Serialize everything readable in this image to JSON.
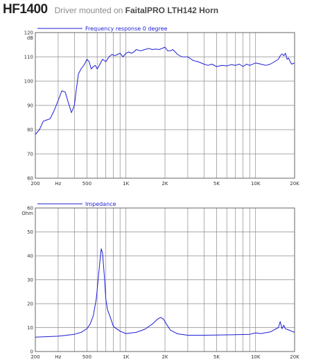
{
  "header": {
    "model": "HF1400",
    "subtitle_prefix": "Driver mounted on ",
    "subtitle_bold": "FaitalPRO LTH142 Horn"
  },
  "colors": {
    "curve": "#1c1cd6",
    "grid": "#8a8a8a",
    "text": "#333333"
  },
  "chart_data": [
    {
      "type": "line",
      "title": "",
      "legend": "Frequency response 0 degree",
      "legend_placement": "top-left",
      "xscale": "log",
      "xlim": [
        200,
        20000
      ],
      "ylim": [
        60,
        120
      ],
      "ylabel": "dB",
      "xticks": [
        {
          "v": 200,
          "t": "200"
        },
        {
          "v": 300,
          "t": "Hz"
        },
        {
          "v": 500,
          "t": "500"
        },
        {
          "v": 1000,
          "t": "1K"
        },
        {
          "v": 2000,
          "t": "2K"
        },
        {
          "v": 5000,
          "t": "5K"
        },
        {
          "v": 10000,
          "t": "10K"
        },
        {
          "v": 20000,
          "t": "20K"
        }
      ],
      "yticks": [
        {
          "v": 60,
          "t": "60"
        },
        {
          "v": 70,
          "t": "70"
        },
        {
          "v": 80,
          "t": "80"
        },
        {
          "v": 90,
          "t": "90"
        },
        {
          "v": 100,
          "t": "100"
        },
        {
          "v": 110,
          "t": "110"
        },
        {
          "v": 120,
          "t": "120"
        }
      ],
      "grid": true,
      "series": [
        {
          "name": "Frequency response 0 degree",
          "x": [
            200,
            215,
            230,
            245,
            260,
            280,
            300,
            320,
            340,
            360,
            380,
            400,
            415,
            430,
            450,
            480,
            500,
            520,
            540,
            560,
            580,
            600,
            630,
            660,
            700,
            740,
            780,
            820,
            860,
            900,
            950,
            1000,
            1050,
            1100,
            1150,
            1200,
            1300,
            1400,
            1500,
            1600,
            1700,
            1800,
            1900,
            2000,
            2100,
            2200,
            2300,
            2400,
            2500,
            2700,
            3000,
            3300,
            3600,
            4000,
            4300,
            4600,
            5000,
            5500,
            6000,
            6500,
            7000,
            7500,
            8000,
            8500,
            9000,
            10000,
            11000,
            12000,
            13000,
            14000,
            15000,
            15500,
            16000,
            16500,
            17000,
            17500,
            18000,
            18500,
            19000,
            20000
          ],
          "y": [
            78,
            80,
            83.5,
            84,
            84.5,
            88,
            92,
            96,
            95.5,
            91,
            87,
            90,
            97,
            103,
            105,
            107,
            109,
            108,
            105,
            106,
            106.5,
            105,
            107,
            109,
            108,
            110,
            111,
            110.5,
            111,
            111.5,
            110,
            111.5,
            112,
            111.5,
            112,
            113,
            112.5,
            113,
            113.5,
            113,
            113.2,
            113,
            113.5,
            114,
            112.5,
            112.5,
            113,
            112,
            111,
            110,
            110,
            108.5,
            108,
            107,
            106.5,
            107,
            106,
            106.5,
            106.3,
            106.8,
            106.5,
            107,
            106,
            107,
            106.5,
            107.5,
            107,
            106.5,
            107,
            108,
            109,
            110.5,
            111.2,
            110.5,
            111.5,
            109,
            109.5,
            108,
            107,
            107.5
          ]
        }
      ]
    },
    {
      "type": "line",
      "title": "",
      "legend": "Impedance",
      "legend_placement": "top-left",
      "xscale": "log",
      "xlim": [
        200,
        20000
      ],
      "ylim": [
        0,
        60
      ],
      "ylabel": "Ohm",
      "xticks": [
        {
          "v": 200,
          "t": "200"
        },
        {
          "v": 300,
          "t": "Hz"
        },
        {
          "v": 500,
          "t": "500"
        },
        {
          "v": 1000,
          "t": "1K"
        },
        {
          "v": 2000,
          "t": "2K"
        },
        {
          "v": 5000,
          "t": "5K"
        },
        {
          "v": 10000,
          "t": "10K"
        },
        {
          "v": 20000,
          "t": "20K"
        }
      ],
      "yticks": [
        {
          "v": 0,
          "t": "0"
        },
        {
          "v": 10,
          "t": "10"
        },
        {
          "v": 20,
          "t": "20"
        },
        {
          "v": 30,
          "t": "30"
        },
        {
          "v": 40,
          "t": "40"
        },
        {
          "v": 50,
          "t": "50"
        },
        {
          "v": 60,
          "t": "60"
        }
      ],
      "grid": true,
      "series": [
        {
          "name": "Impedance",
          "x": [
            200,
            300,
            400,
            450,
            500,
            530,
            560,
            590,
            610,
            630,
            645,
            660,
            680,
            700,
            720,
            750,
            800,
            900,
            1000,
            1200,
            1400,
            1600,
            1750,
            1850,
            1950,
            2050,
            2200,
            2500,
            3000,
            4000,
            5000,
            7000,
            9000,
            10000,
            11000,
            13000,
            15000,
            15500,
            16000,
            16500,
            17000,
            18000,
            19000,
            20000
          ],
          "y": [
            6,
            6.4,
            7.2,
            8,
            9.5,
            11.5,
            15,
            22,
            30,
            38,
            43,
            41,
            32,
            22,
            17.5,
            15,
            10.5,
            8.5,
            7.5,
            8,
            9.3,
            11.5,
            13.5,
            14.3,
            13.5,
            11.5,
            9,
            7.4,
            6.8,
            6.8,
            6.9,
            7,
            7.2,
            7.8,
            7.5,
            8.2,
            10,
            12.5,
            9.5,
            11,
            9.5,
            9,
            8.5,
            8
          ]
        }
      ]
    }
  ]
}
